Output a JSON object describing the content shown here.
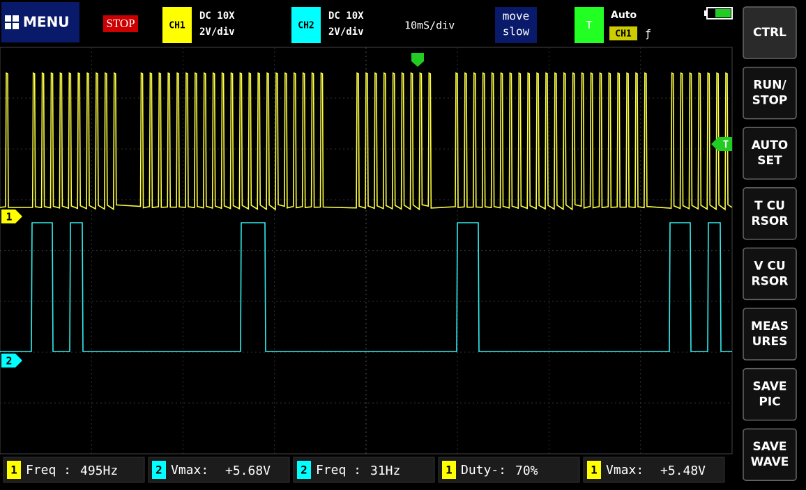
{
  "header": {
    "menu": "MENU",
    "run_state": "STOP",
    "ch1": {
      "label": "CH1",
      "coupling": "DC 10X",
      "scale": "2V/div"
    },
    "ch2": {
      "label": "CH2",
      "coupling": "DC 10X",
      "scale": "2V/div"
    },
    "timebase": "10mS/div",
    "move": {
      "line1": "move",
      "line2": "slow"
    },
    "trigger": {
      "label": "T",
      "mode": "Auto",
      "source": "CH1",
      "edge": "ƒ"
    }
  },
  "markers": {
    "ch1": "1",
    "ch2": "2",
    "trigger_level": "T"
  },
  "buttons": [
    {
      "line1": "CTRL"
    },
    {
      "line1": "RUN/",
      "line2": "STOP"
    },
    {
      "line1": "AUTO",
      "line2": "SET"
    },
    {
      "line1": "T CU",
      "line2": "RSOR"
    },
    {
      "line1": "V CU",
      "line2": "RSOR"
    },
    {
      "line1": "MEAS",
      "line2": "URES"
    },
    {
      "line1": "SAVE",
      "line2": "PIC"
    },
    {
      "line1": "SAVE",
      "line2": "WAVE"
    }
  ],
  "measurements": [
    {
      "channel": "1",
      "label": "Freq :",
      "value": "495Hz"
    },
    {
      "channel": "2",
      "label": "Vmax:",
      "value": "+5.68V"
    },
    {
      "channel": "2",
      "label": "Freq :",
      "value": "31Hz"
    },
    {
      "channel": "1",
      "label": "Duty-:",
      "value": "70%"
    },
    {
      "channel": "1",
      "label": "Vmax:",
      "value": "+5.48V"
    }
  ]
}
